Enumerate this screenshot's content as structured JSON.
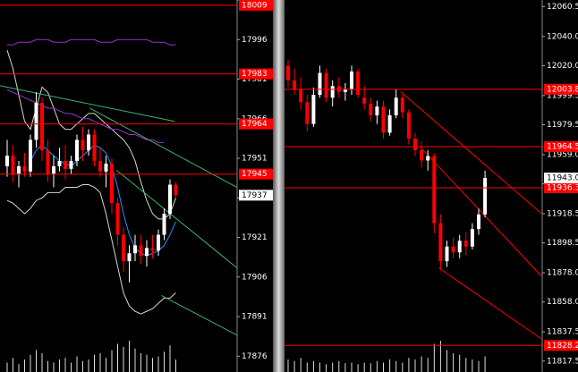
{
  "chart_data": [
    {
      "type": "candlestick",
      "open": [
        17948,
        17952,
        17945,
        17948,
        17946,
        17958,
        17972,
        17954,
        17945,
        17948,
        17950,
        17947,
        17950,
        17958,
        17954,
        17960,
        17950,
        17946,
        17949,
        17934,
        17922,
        17912,
        17915,
        17918,
        17914,
        17917,
        17916,
        17922,
        17930,
        17941
      ],
      "high": [
        17958,
        17956,
        17950,
        17953,
        17960,
        17976,
        17974,
        17958,
        17952,
        17955,
        17956,
        17952,
        17960,
        17963,
        17962,
        17962,
        17955,
        17952,
        17951,
        17936,
        17925,
        17918,
        17922,
        17922,
        17920,
        17922,
        17924,
        17932,
        17943,
        17942
      ],
      "low": [
        17944,
        17942,
        17940,
        17944,
        17944,
        17955,
        17950,
        17942,
        17940,
        17946,
        17943,
        17945,
        17948,
        17950,
        17952,
        17948,
        17944,
        17940,
        17930,
        17918,
        17908,
        17904,
        17912,
        17911,
        17910,
        17913,
        17914,
        17920,
        17928,
        17936
      ],
      "close": [
        17952,
        17945,
        17948,
        17946,
        17958,
        17972,
        17954,
        17945,
        17948,
        17950,
        17947,
        17950,
        17958,
        17954,
        17960,
        17950,
        17946,
        17949,
        17934,
        17922,
        17912,
        17915,
        17918,
        17914,
        17917,
        17916,
        17922,
        17930,
        17941,
        17937
      ],
      "volume": [
        30,
        45,
        25,
        40,
        55,
        70,
        60,
        35,
        30,
        40,
        45,
        30,
        50,
        35,
        40,
        55,
        60,
        45,
        70,
        90,
        80,
        100,
        75,
        60,
        55,
        45,
        50,
        65,
        85,
        40
      ],
      "ylim": [
        17870,
        18011
      ],
      "yticks": [
        18011,
        17996,
        17981,
        17966,
        17951,
        17936,
        17921,
        17906,
        17891,
        17876
      ],
      "up_color": "#ffffff",
      "down_color": "#ff0000",
      "overlays": [
        {
          "color": "#1e90ff",
          "values": [
            null,
            null,
            null,
            null,
            17950,
            17954,
            17956,
            17954,
            17952,
            17950,
            17949,
            17948,
            17950,
            17952,
            17954,
            17956,
            17955,
            17953,
            17948,
            17940,
            17930,
            17922,
            17917,
            17915,
            17914,
            17915,
            17916,
            17918,
            17922,
            17927
          ]
        },
        {
          "color": "#d8d8c8",
          "values": [
            17992,
            17985,
            17975,
            17965,
            17962,
            17970,
            17978,
            17976,
            17970,
            17964,
            17962,
            17962,
            17964,
            17966,
            17968,
            17968,
            17966,
            17964,
            17962,
            17960,
            17958,
            17955,
            17950,
            17942,
            17935,
            17930,
            17928,
            17928,
            17930,
            17936
          ]
        },
        {
          "color": "#d8d8c8",
          "values": [
            17935,
            17934,
            17932,
            17930,
            17932,
            17935,
            17936,
            17938,
            17938,
            17938,
            17940,
            17940,
            17940,
            17941,
            17941,
            17940,
            17938,
            17930,
            17920,
            17910,
            17900,
            17895,
            17893,
            17892,
            17893,
            17894,
            17896,
            17898,
            17898,
            17900
          ]
        },
        {
          "color": "#9932cc",
          "values": [
            17994,
            17994,
            17995,
            17995,
            17995,
            17996,
            17996,
            17996,
            17995,
            17995,
            17995,
            17996,
            17996,
            17996,
            17996,
            17996,
            17995,
            17995,
            17995,
            17996,
            17996,
            17996,
            17996,
            17996,
            17996,
            17995,
            17995,
            17995,
            17994,
            17994
          ]
        },
        {
          "color": "#9932cc",
          "values": [
            17977,
            17976,
            17975,
            17974,
            17973,
            17972,
            17971,
            17970,
            17970,
            17969,
            17968,
            17968,
            17967,
            17966,
            17966,
            17965,
            17964,
            17963,
            17962,
            17962,
            17961,
            17960,
            17960,
            17959,
            17958,
            17958,
            17957,
            17957,
            null,
            null
          ]
        }
      ],
      "trendlines": [
        {
          "color": "#3cb371",
          "x": [
            -1.2,
            28.8
          ],
          "y": [
            17978.5,
            17965
          ]
        },
        {
          "color": "#3cb371",
          "x": [
            14.2,
            39.5
          ],
          "y": [
            17970,
            17940
          ]
        },
        {
          "color": "#3cb371",
          "x": [
            18.8,
            39.5
          ],
          "y": [
            17946.5,
            17909.5
          ]
        },
        {
          "color": "#3cb371",
          "x": [
            26.5,
            39.5
          ],
          "y": [
            17899,
            17884
          ]
        }
      ],
      "levels": [
        {
          "value": 18009,
          "color": "#ff0000",
          "line": true
        },
        {
          "value": 17983,
          "color": "#ff0000",
          "line": true
        },
        {
          "value": 17964,
          "color": "#ff0000",
          "line": true
        },
        {
          "value": 17945,
          "color": "#ff0000",
          "line": true
        },
        {
          "value": 17937,
          "color": "#ffffff",
          "line": false
        }
      ]
    },
    {
      "type": "candlestick",
      "open": [
        12020,
        12010,
        12004,
        11995,
        11980,
        12000,
        12015,
        11998,
        12006,
        12002,
        12004,
        12016,
        11998,
        11994,
        11986,
        11992,
        11974,
        11986,
        11998,
        11988,
        11970,
        11962,
        11955,
        11958,
        11912,
        11886,
        11896,
        11892,
        11900,
        11896,
        11908,
        11918
      ],
      "high": [
        12024,
        12018,
        12012,
        12000,
        12005,
        12020,
        12018,
        12010,
        12012,
        12008,
        12020,
        12018,
        12006,
        11998,
        11996,
        11996,
        11990,
        12004,
        12000,
        11990,
        11974,
        11968,
        11962,
        11960,
        11918,
        11900,
        11902,
        11904,
        11906,
        11912,
        11922,
        11948
      ],
      "low": [
        12005,
        12000,
        11990,
        11975,
        11978,
        11998,
        11995,
        11992,
        11998,
        11996,
        12000,
        11998,
        11990,
        11982,
        11980,
        11970,
        11972,
        11984,
        11984,
        11966,
        11958,
        11950,
        11948,
        11905,
        11880,
        11882,
        11888,
        11888,
        11890,
        11894,
        11904,
        11916
      ],
      "close": [
        12010,
        12004,
        11995,
        11980,
        12000,
        12015,
        11998,
        12006,
        12002,
        12004,
        12016,
        12000,
        11994,
        11986,
        11992,
        11974,
        11986,
        11998,
        11988,
        11970,
        11962,
        11955,
        11958,
        11912,
        11886,
        11896,
        11892,
        11900,
        11896,
        11908,
        11918,
        11943
      ],
      "volume": [
        40,
        35,
        45,
        30,
        35,
        30,
        25,
        30,
        35,
        28,
        30,
        25,
        30,
        28,
        35,
        30,
        40,
        35,
        30,
        45,
        40,
        50,
        45,
        90,
        100,
        70,
        60,
        55,
        45,
        40,
        35,
        50
      ],
      "ylim": [
        11810,
        12065
      ],
      "yticks": [
        12060.5,
        {
          "value": 12040,
          "label": "12040.0"
        },
        {
          "value": 12020,
          "label": "12020.0"
        },
        11999.5,
        11979.5,
        {
          "value": 11959,
          "label": "11959.0"
        },
        {
          "value": 11939,
          "label": "11939.0"
        },
        11918.5,
        11898.5,
        {
          "value": 11878,
          "label": "11878.0"
        },
        {
          "value": 11858,
          "label": "11858.0"
        },
        11837.5,
        11817.5
      ],
      "up_color": "#ffffff",
      "down_color": "#ff0000",
      "overlays": [],
      "trendlines": [
        {
          "color": "#ff0000",
          "x": [
            17.7,
            40
          ],
          "y": [
            12002.2,
            11918.2
          ]
        },
        {
          "color": "#ff0000",
          "x": [
            20.8,
            40
          ],
          "y": [
            11964.2,
            11875.2
          ]
        },
        {
          "color": "#ff0000",
          "x": [
            23.7,
            40
          ],
          "y": [
            11881.4,
            11832.3
          ]
        }
      ],
      "levels": [
        {
          "value": 12003.8,
          "color": "#ff0000",
          "line": true
        },
        {
          "value": 11964.5,
          "color": "#ff0000",
          "line": true
        },
        {
          "value": 11936.3,
          "color": "#ff0000",
          "line": true
        },
        {
          "value": 11828.2,
          "color": "#ff0000",
          "line": true
        },
        {
          "value": 11943,
          "label": "11943.0",
          "color": "#ffffff",
          "line": false
        }
      ]
    }
  ]
}
